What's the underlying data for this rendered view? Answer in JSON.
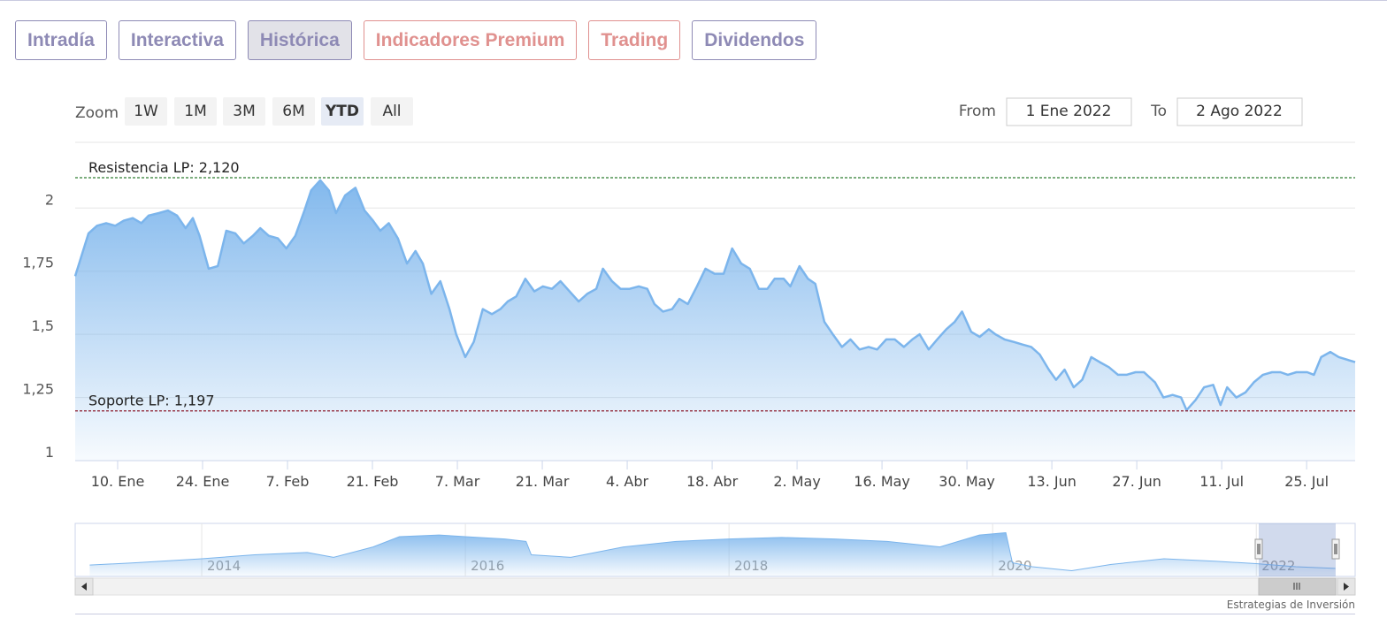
{
  "tabs": [
    {
      "label": "Intradía",
      "color": "#8e8ab5"
    },
    {
      "label": "Interactiva",
      "color": "#8e8ab5"
    },
    {
      "label": "Histórica",
      "color": "#8e8ab5"
    },
    {
      "label": "Indicadores Premium",
      "color": "#e0918f"
    },
    {
      "label": "Trading",
      "color": "#e0918f"
    },
    {
      "label": "Dividendos",
      "color": "#8e8ab5"
    }
  ],
  "active_tab": 2,
  "range_selector": {
    "label": "Zoom",
    "buttons": [
      "1W",
      "1M",
      "3M",
      "6M",
      "YTD",
      "All"
    ],
    "active_index": 4
  },
  "date_range": {
    "from_label": "From",
    "from": "1 Ene 2022",
    "to_label": "To",
    "to": "2 Ago 2022"
  },
  "chart_data": {
    "type": "area",
    "color": "#7cb5ec",
    "x": [
      3.0,
      5.2,
      6.6,
      8.1,
      9.6,
      11.0,
      12.5,
      13.9,
      15.1,
      16.8,
      18.3,
      19.8,
      21.2,
      22.4,
      23.5,
      25.0,
      26.5,
      27.9,
      29.4,
      30.8,
      32.3,
      33.5,
      34.9,
      36.4,
      37.8,
      39.3,
      40.8,
      41.9,
      43.4,
      44.8,
      46.0,
      47.5,
      49.2,
      50.7,
      52.1,
      53.3,
      54.7,
      56.2,
      57.7,
      59.1,
      60.3,
      61.7,
      63.2,
      64.7,
      65.8,
      67.3,
      68.7,
      70.2,
      71.7,
      73.1,
      74.3,
      75.7,
      77.2,
      78.7,
      80.1,
      81.6,
      83.0,
      84.5,
      86.0,
      87.4,
      88.9,
      90.0,
      91.5,
      92.9,
      94.4,
      95.9,
      97.3,
      98.5,
      99.9,
      101.4,
      102.6,
      104.0,
      105.5,
      106.9,
      108.4,
      109.9,
      111.3,
      112.8,
      114.2,
      115.7,
      117.1,
      118.3,
      119.8,
      120.9,
      122.4,
      123.8,
      125.0,
      126.5,
      127.9,
      129.4,
      130.8,
      132.3,
      133.8,
      135.2,
      136.7,
      138.1,
      139.6,
      141.0,
      142.2,
      143.7,
      145.1,
      146.6,
      148.0,
      149.2,
      150.7,
      152.1,
      153.6,
      154.7,
      156.2,
      157.7,
      159.1,
      160.6,
      162.0,
      163.5,
      164.7,
      166.1,
      167.6,
      169.0,
      170.5,
      171.9,
      173.4,
      174.9,
      176.3,
      177.8,
      179.2,
      181.0,
      182.4,
      183.9,
      185.3,
      186.2,
      187.7,
      189.1,
      190.6,
      191.8,
      192.9,
      194.4,
      195.9,
      197.3,
      198.8,
      200.3,
      201.7,
      202.9,
      204.3,
      206.1,
      207.2,
      208.4,
      209.9,
      211.3,
      214
    ],
    "values": [
      1.73,
      1.9,
      1.93,
      1.94,
      1.93,
      1.95,
      1.96,
      1.94,
      1.97,
      1.98,
      1.99,
      1.97,
      1.92,
      1.96,
      1.89,
      1.76,
      1.77,
      1.91,
      1.9,
      1.86,
      1.89,
      1.92,
      1.89,
      1.88,
      1.84,
      1.89,
      1.99,
      2.07,
      2.11,
      2.07,
      1.98,
      2.05,
      2.08,
      1.99,
      1.95,
      1.91,
      1.94,
      1.88,
      1.78,
      1.83,
      1.78,
      1.66,
      1.71,
      1.6,
      1.5,
      1.41,
      1.47,
      1.6,
      1.58,
      1.6,
      1.63,
      1.65,
      1.72,
      1.67,
      1.69,
      1.68,
      1.71,
      1.67,
      1.63,
      1.66,
      1.68,
      1.76,
      1.71,
      1.68,
      1.68,
      1.69,
      1.68,
      1.62,
      1.59,
      1.6,
      1.64,
      1.62,
      1.69,
      1.76,
      1.74,
      1.74,
      1.84,
      1.78,
      1.76,
      1.68,
      1.68,
      1.72,
      1.72,
      1.69,
      1.77,
      1.72,
      1.7,
      1.55,
      1.5,
      1.45,
      1.48,
      1.44,
      1.45,
      1.44,
      1.48,
      1.48,
      1.45,
      1.48,
      1.5,
      1.44,
      1.48,
      1.52,
      1.55,
      1.59,
      1.51,
      1.49,
      1.52,
      1.5,
      1.48,
      1.47,
      1.46,
      1.45,
      1.42,
      1.36,
      1.32,
      1.36,
      1.29,
      1.32,
      1.41,
      1.39,
      1.37,
      1.34,
      1.34,
      1.35,
      1.35,
      1.31,
      1.25,
      1.26,
      1.25,
      1.2,
      1.24,
      1.29,
      1.3,
      1.22,
      1.29,
      1.25,
      1.27,
      1.31,
      1.34,
      1.35,
      1.35,
      1.34,
      1.35,
      1.35,
      1.34,
      1.41,
      1.43,
      1.41,
      1.39
    ],
    "xlim": [
      3,
      214
    ],
    "xticks": [
      {
        "value": 10,
        "label": "10. Ene"
      },
      {
        "value": 24,
        "label": "24. Ene"
      },
      {
        "value": 38,
        "label": "7. Feb"
      },
      {
        "value": 52,
        "label": "21. Feb"
      },
      {
        "value": 66,
        "label": "7. Mar"
      },
      {
        "value": 80,
        "label": "21. Mar"
      },
      {
        "value": 94,
        "label": "4. Abr"
      },
      {
        "value": 108,
        "label": "18. Abr"
      },
      {
        "value": 122,
        "label": "2. May"
      },
      {
        "value": 136,
        "label": "16. May"
      },
      {
        "value": 150,
        "label": "30. May"
      },
      {
        "value": 164,
        "label": "13. Jun"
      },
      {
        "value": 178,
        "label": "27. Jun"
      },
      {
        "value": 192,
        "label": "11. Jul"
      },
      {
        "value": 206,
        "label": "25. Jul"
      }
    ],
    "ylim": [
      1,
      2.26
    ],
    "yticks": [
      1,
      {
        "value": 1.25,
        "label": "1,25"
      },
      {
        "value": 1.5,
        "label": "1,5"
      },
      {
        "value": 1.75,
        "label": "1,75"
      },
      2
    ],
    "grid": true,
    "annotations": [
      {
        "label": "Resistencia LP: 2,120",
        "value": 2.12,
        "color": "#2e7d32"
      },
      {
        "label": "Soporte LP: 1,197",
        "value": 1.197,
        "color": "#8b1a2b"
      }
    ]
  },
  "navigator": {
    "type": "area",
    "color": "#7cb5ec",
    "x": [
      2013.15,
      2013.5,
      2014.0,
      2014.4,
      2014.8,
      2015.0,
      2015.3,
      2015.5,
      2015.8,
      2016.0,
      2016.3,
      2016.46,
      2016.5,
      2016.8,
      2017.2,
      2017.6,
      2018.0,
      2018.4,
      2018.8,
      2019.2,
      2019.6,
      2019.9,
      2020.1,
      2020.15,
      2020.3,
      2020.6,
      2020.9,
      2021.3,
      2021.7,
      2022.0,
      2022.3,
      2022.6
    ],
    "values": [
      1.46,
      1.57,
      1.76,
      1.95,
      2.06,
      1.83,
      2.33,
      2.82,
      2.9,
      2.82,
      2.71,
      2.59,
      1.95,
      1.83,
      2.33,
      2.59,
      2.71,
      2.78,
      2.71,
      2.59,
      2.33,
      2.9,
      3.01,
      1.57,
      1.38,
      1.19,
      1.49,
      1.76,
      1.64,
      1.53,
      1.38,
      1.3
    ],
    "xlim": [
      2013.04,
      2022.75
    ],
    "xticks": [
      2014,
      2016,
      2018,
      2020,
      2022
    ],
    "ylim": [
      1,
      3.2
    ]
  },
  "footer": "Estrategias de Inversión"
}
